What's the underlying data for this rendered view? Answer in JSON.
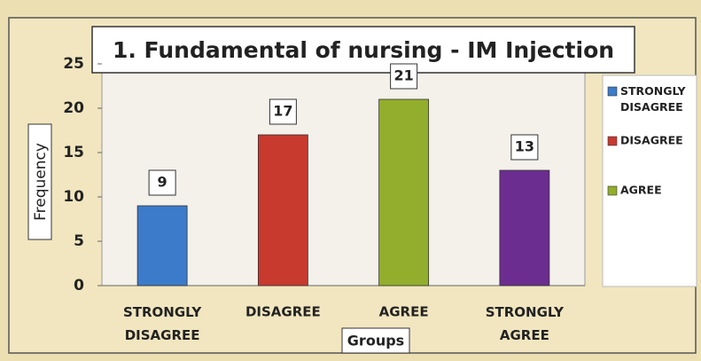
{
  "chart_data": {
    "type": "bar",
    "title": "1. Fundamental of nursing - IM Injection",
    "x_label": "Groups",
    "y_label": "Frequency",
    "categories": [
      "STRONGLY DISAGREE",
      "DISAGREE",
      "AGREE",
      "STRONGLY AGREE"
    ],
    "values": [
      9,
      17,
      21,
      13
    ],
    "colors": [
      "#3b7bc9",
      "#c8392e",
      "#93ae2c",
      "#6b2d8f"
    ],
    "legend": [
      "STRONGLY DISAGREE",
      "DISAGREE",
      "AGREE"
    ],
    "ylim": [
      0,
      25
    ],
    "yticks": [
      0,
      5,
      10,
      15,
      20,
      25
    ],
    "grid": false
  }
}
